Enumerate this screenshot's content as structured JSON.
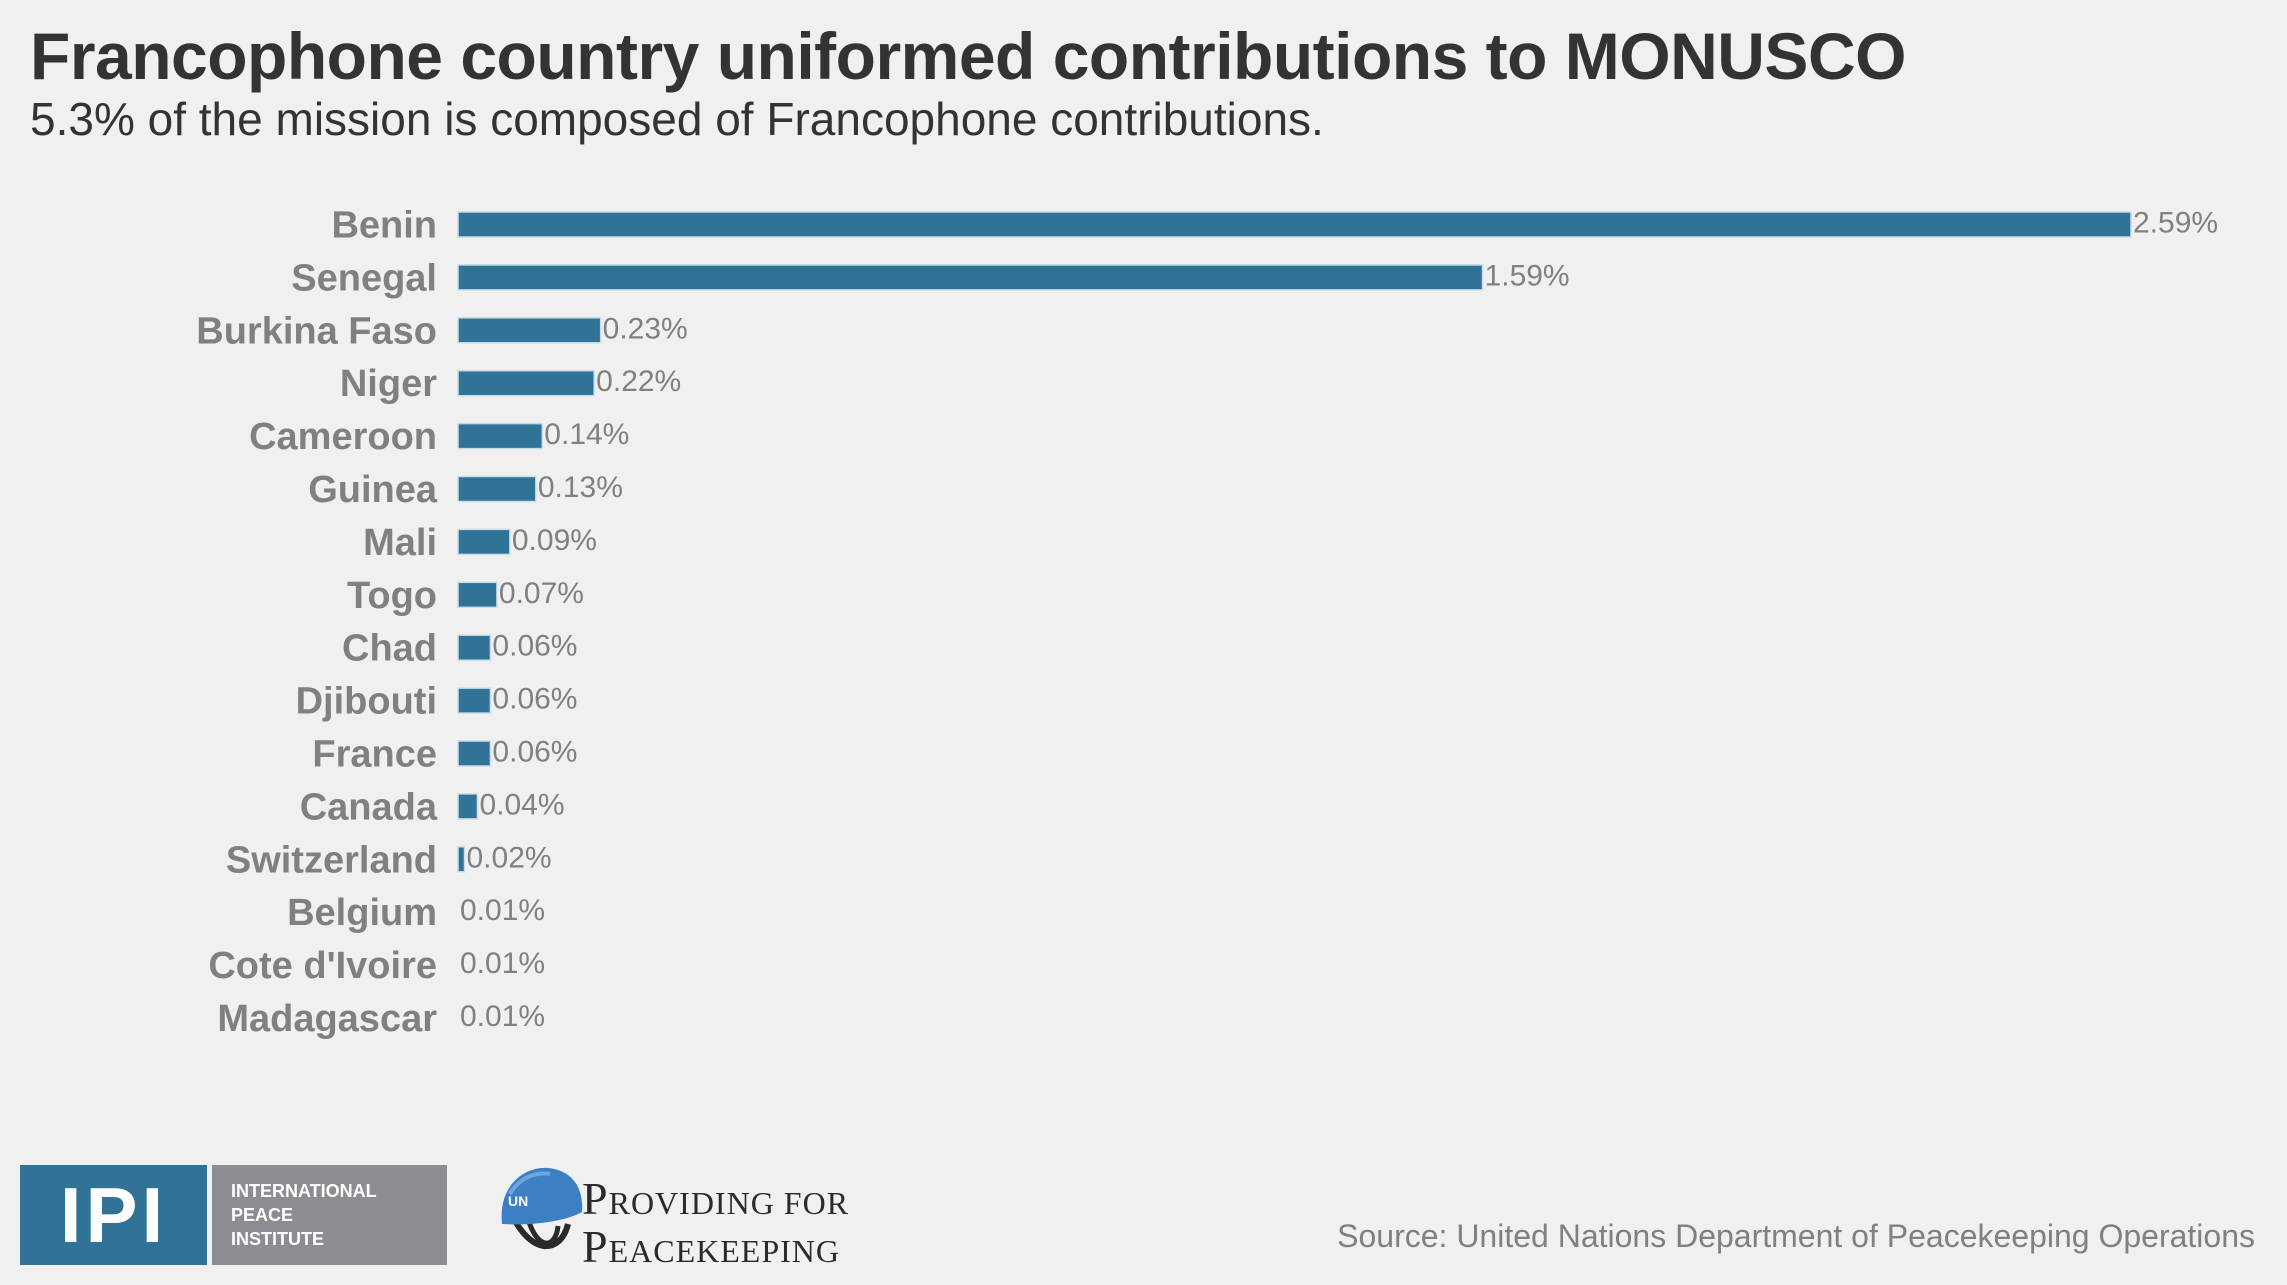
{
  "header": {
    "title": "Francophone country uniformed contributions to MONUSCO",
    "subtitle": "5.3% of the mission is composed of Francophone contributions."
  },
  "chart_data": {
    "type": "bar",
    "orientation": "horizontal",
    "title": "Francophone country uniformed contributions to MONUSCO",
    "subtitle": "5.3% of the mission is composed of Francophone contributions.",
    "xlabel": "",
    "ylabel": "",
    "unit": "%",
    "grid": false,
    "legend": "none",
    "bar_color": "#317396",
    "xlim": [
      0.01,
      2.6
    ],
    "categories": [
      "Benin",
      "Senegal",
      "Burkina Faso",
      "Niger",
      "Cameroon",
      "Guinea",
      "Mali",
      "Togo",
      "Chad",
      "Djibouti",
      "France",
      "Canada",
      "Switzerland",
      "Belgium",
      "Cote d'Ivoire",
      "Madagascar"
    ],
    "values": [
      2.59,
      1.59,
      0.23,
      0.22,
      0.14,
      0.13,
      0.09,
      0.07,
      0.06,
      0.06,
      0.06,
      0.04,
      0.02,
      0.01,
      0.01,
      0.01
    ],
    "value_labels": [
      "2.59%",
      "1.59%",
      "0.23%",
      "0.22%",
      "0.14%",
      "0.13%",
      "0.09%",
      "0.07%",
      "0.06%",
      "0.06%",
      "0.06%",
      "0.04%",
      "0.02%",
      "0.01%",
      "0.01%",
      "0.01%"
    ]
  },
  "footer": {
    "ipi": {
      "mark": "IPI",
      "lines": [
        "INTERNATIONAL",
        "PEACE",
        "INSTITUTE"
      ],
      "blue": "#317396",
      "gray": "#8a8d91"
    },
    "pfp": {
      "helmet_text": "UN",
      "line1_initial": "P",
      "line1_rest": "ROVIDING FOR",
      "line2_initial": "P",
      "line2_rest": "EACEKEEPING"
    },
    "source": "Source: United Nations Department of Peacekeeping Operations"
  }
}
